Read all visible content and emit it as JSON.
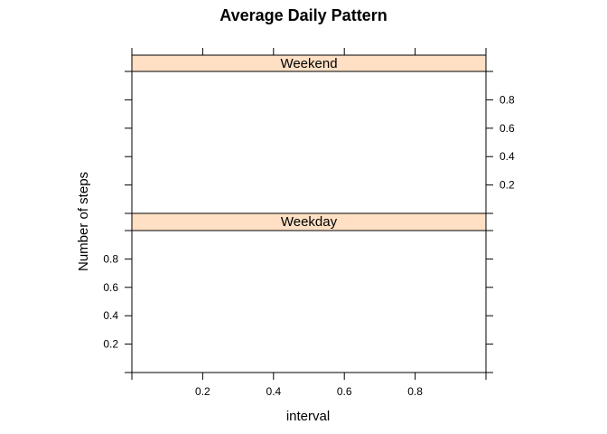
{
  "chart_data": {
    "type": "line",
    "title": "Average Daily Pattern",
    "xlabel": "interval",
    "ylabel": "Number of steps",
    "xlim": [
      0,
      1
    ],
    "ylim": [
      0,
      1
    ],
    "x_ticks": [
      0.2,
      0.4,
      0.6,
      0.8
    ],
    "x_tick_labels": [
      "0.2",
      "0.4",
      "0.6",
      "0.8"
    ],
    "y_ticks": [
      0.2,
      0.4,
      0.6,
      0.8
    ],
    "y_tick_labels": [
      "0.2",
      "0.4",
      "0.6",
      "0.8"
    ],
    "grid": false,
    "layout": "lattice 1 column x 2 rows",
    "strip_color": "#ffe0c4",
    "panels": [
      {
        "strip": "Weekend",
        "y_axis_side": "right",
        "series": []
      },
      {
        "strip": "Weekday",
        "y_axis_side": "left",
        "series": []
      }
    ]
  }
}
